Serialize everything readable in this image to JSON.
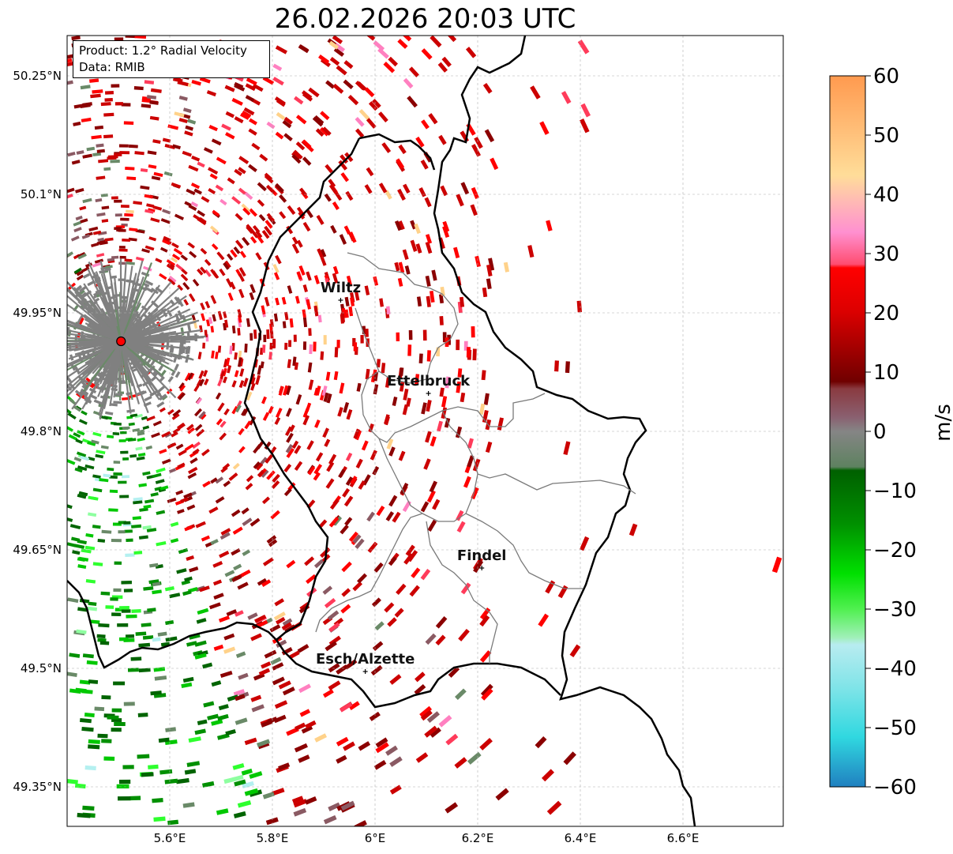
{
  "title": "26.02.2026 20:03 UTC",
  "info": {
    "product_line": "Product: 1.2° Radial Velocity",
    "data_line": "Data: RMIB"
  },
  "map": {
    "lon_ticks": [
      "5.6°E",
      "5.8°E",
      "6°E",
      "6.2°E",
      "6.4°E",
      "6.6°E"
    ],
    "lat_ticks": [
      "50.25°N",
      "50.1°N",
      "49.95°N",
      "49.8°N",
      "49.65°N",
      "49.5°N",
      "49.35°N"
    ],
    "radar_site": {
      "lon": 5.505,
      "lat": 49.914
    },
    "cities": [
      {
        "name": "Wiltz",
        "lon": 5.933,
        "lat": 49.966
      },
      {
        "name": "Ettelbruck",
        "lon": 6.104,
        "lat": 49.848
      },
      {
        "name": "Findel",
        "lon": 6.208,
        "lat": 49.627
      },
      {
        "name": "Esch/Alzette",
        "lon": 5.981,
        "lat": 49.496
      }
    ]
  },
  "colorbar": {
    "label": "m/s",
    "min": -60,
    "max": 60,
    "ticks": [
      "60",
      "50",
      "40",
      "30",
      "20",
      "10",
      "0",
      "−10",
      "−20",
      "−30",
      "−40",
      "−50",
      "−60"
    ]
  },
  "colors": {
    "outbound": [
      "#f26b00",
      "#ff9a4f",
      "#ffd28a",
      "#ff80c0",
      "#ff3b5a",
      "#ff0000",
      "#cc0000",
      "#8b0000"
    ],
    "neutral": [
      "#8a5a63",
      "#808080",
      "#6a8a68"
    ],
    "inbound": [
      "#006400",
      "#009000",
      "#00c800",
      "#2eff2e",
      "#8effa0",
      "#b4f0f0",
      "#30e0e0",
      "#2080c0"
    ],
    "radar_marker": "#ff0000"
  }
}
